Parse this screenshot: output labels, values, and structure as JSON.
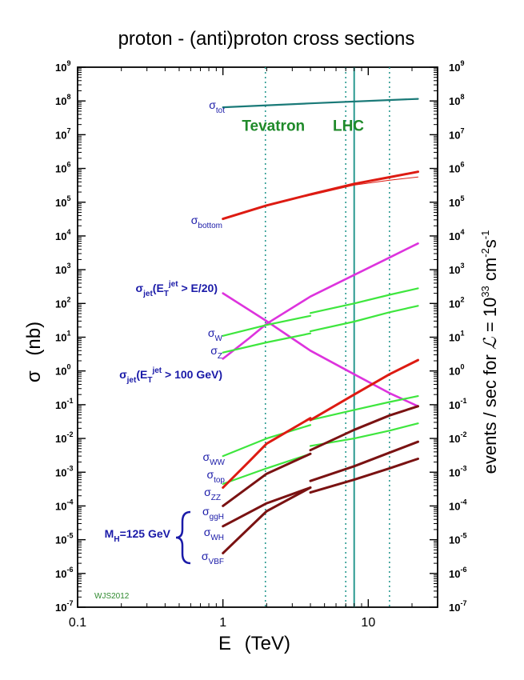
{
  "chart_data": {
    "type": "line",
    "title": "proton - (anti)proton cross sections",
    "xlabel_main": "E",
    "xlabel_unit": "(TeV)",
    "ylabel_left_main": "σ",
    "ylabel_left_unit": "(nb)",
    "ylabel_right": {
      "part1": "events / sec for ",
      "script_L": "ℒ",
      "part2": " = 10",
      "exp1": "33",
      "part3": " cm",
      "exp2": "-2",
      "part4": "s",
      "exp3": "-1"
    },
    "x_scale": "log",
    "y_scale": "log",
    "xlim": [
      0.1,
      30
    ],
    "ylim": [
      1e-07,
      1000000000.0
    ],
    "x_ticks": [
      "0.1",
      "1",
      "10"
    ],
    "y_ticks": [
      {
        "base": "10",
        "exp": "9"
      },
      {
        "base": "10",
        "exp": "8"
      },
      {
        "base": "10",
        "exp": "7"
      },
      {
        "base": "10",
        "exp": "6"
      },
      {
        "base": "10",
        "exp": "5"
      },
      {
        "base": "10",
        "exp": "4"
      },
      {
        "base": "10",
        "exp": "3"
      },
      {
        "base": "10",
        "exp": "2"
      },
      {
        "base": "10",
        "exp": "1"
      },
      {
        "base": "10",
        "exp": "0"
      },
      {
        "base": "10",
        "exp": "-1"
      },
      {
        "base": "10",
        "exp": "-2"
      },
      {
        "base": "10",
        "exp": "-3"
      },
      {
        "base": "10",
        "exp": "-4"
      },
      {
        "base": "10",
        "exp": "-5"
      },
      {
        "base": "10",
        "exp": "-6"
      },
      {
        "base": "10",
        "exp": "-7"
      }
    ],
    "colliders": {
      "tevatron": {
        "label": "Tevatron",
        "energies": [
          1.96
        ]
      },
      "lhc": {
        "label": "LHC",
        "energies": [
          7,
          8,
          14
        ]
      }
    },
    "credit": "WJS2012",
    "colors": {
      "tot": "#1a7a78",
      "bottom": "#dd1b12",
      "jet": "#dd33dd",
      "ew": "#3ee63e",
      "top": "#dd1b12",
      "higgs": "#7a1212",
      "vline": "#2a9a90",
      "label": "#1a1aa8",
      "collider": "#1f8a2a"
    },
    "series": [
      {
        "key": "tot",
        "color_key": "tot",
        "width": 2.2,
        "segments": [
          [
            [
              1,
              65000000.0
            ],
            [
              4,
              85000000.0
            ],
            [
              22,
              115000000.0
            ]
          ]
        ]
      },
      {
        "key": "bottom",
        "color_key": "bottom",
        "width": 3,
        "segments": [
          [
            [
              1,
              32000.0
            ],
            [
              2,
              80000.0
            ],
            [
              4,
              170000.0
            ],
            [
              8,
              350000.0
            ],
            [
              14,
              550000.0
            ],
            [
              22,
              800000.0
            ]
          ]
        ]
      },
      {
        "key": "bottom_lhc_thin",
        "color_key": "bottom",
        "width": 1,
        "segments": [
          [
            [
              4,
              160000.0
            ],
            [
              8,
              320000.0
            ],
            [
              14,
              450000.0
            ],
            [
              22,
              560000.0
            ]
          ]
        ]
      },
      {
        "key": "jet_e20",
        "color_key": "jet",
        "width": 2.6,
        "segments": [
          [
            [
              1,
              2.3
            ],
            [
              1.5,
              9
            ],
            [
              2,
              25
            ],
            [
              4,
              160.0
            ],
            [
              8,
              700.0
            ],
            [
              14,
              2300.0
            ],
            [
              22,
              6000.0
            ]
          ]
        ]
      },
      {
        "key": "jet_100",
        "color_key": "jet",
        "width": 2.6,
        "segments": [
          [
            [
              1,
              200.0
            ],
            [
              2,
              30
            ],
            [
              4,
              4
            ],
            [
              8,
              0.8
            ],
            [
              14,
              0.22
            ],
            [
              22,
              0.09
            ]
          ]
        ]
      },
      {
        "key": "W",
        "color_key": "ew",
        "width": 2.2,
        "segments": [
          [
            [
              1,
              11
            ],
            [
              2,
              23
            ],
            [
              4,
              43
            ]
          ],
          [
            [
              4,
              52
            ],
            [
              8,
              100.0
            ],
            [
              14,
              180.0
            ],
            [
              22,
              280.0
            ]
          ]
        ]
      },
      {
        "key": "Z",
        "color_key": "ew",
        "width": 2.2,
        "segments": [
          [
            [
              1,
              3.5
            ],
            [
              2,
              7
            ],
            [
              4,
              13
            ]
          ],
          [
            [
              4,
              15
            ],
            [
              8,
              29
            ],
            [
              14,
              55
            ],
            [
              22,
              85
            ]
          ]
        ]
      },
      {
        "key": "WW",
        "color_key": "ew",
        "width": 2.2,
        "segments": [
          [
            [
              1,
              0.003
            ],
            [
              2,
              0.01
            ],
            [
              4,
              0.025
            ]
          ],
          [
            [
              4,
              0.035
            ],
            [
              8,
              0.07
            ],
            [
              14,
              0.12
            ],
            [
              22,
              0.18
            ]
          ]
        ]
      },
      {
        "key": "ZZ",
        "color_key": "ew",
        "width": 2.2,
        "segments": [
          [
            [
              1,
              0.00045
            ],
            [
              2,
              0.0013
            ],
            [
              4,
              0.0035
            ]
          ],
          [
            [
              4,
              0.006
            ],
            [
              8,
              0.01
            ],
            [
              14,
              0.017
            ],
            [
              22,
              0.028
            ]
          ]
        ]
      },
      {
        "key": "top",
        "color_key": "top",
        "width": 3,
        "segments": [
          [
            [
              1,
              0.00035
            ],
            [
              1.5,
              0.002
            ],
            [
              2,
              0.007
            ],
            [
              4,
              0.04
            ]
          ],
          [
            [
              4,
              0.035
            ],
            [
              8,
              0.2
            ],
            [
              14,
              0.8
            ],
            [
              22,
              2.1
            ]
          ]
        ]
      },
      {
        "key": "ggH",
        "color_key": "higgs",
        "width": 3,
        "segments": [
          [
            [
              1,
              0.0001
            ],
            [
              2,
              0.0009
            ],
            [
              4,
              0.0035
            ]
          ],
          [
            [
              4,
              0.0045
            ],
            [
              8,
              0.018
            ],
            [
              14,
              0.048
            ],
            [
              22,
              0.09
            ]
          ]
        ]
      },
      {
        "key": "WH",
        "color_key": "higgs",
        "width": 3,
        "segments": [
          [
            [
              1,
              2.5e-05
            ],
            [
              2,
              0.00012
            ],
            [
              4,
              0.00035
            ]
          ],
          [
            [
              4,
              0.00055
            ],
            [
              8,
              0.0015
            ],
            [
              14,
              0.0038
            ],
            [
              22,
              0.008
            ]
          ]
        ]
      },
      {
        "key": "VBF",
        "color_key": "higgs",
        "width": 3,
        "segments": [
          [
            [
              1,
              4e-06
            ],
            [
              2,
              7e-05
            ],
            [
              4,
              0.00035
            ]
          ],
          [
            [
              4,
              0.00025
            ],
            [
              8,
              0.0006
            ],
            [
              14,
              0.0013
            ],
            [
              22,
              0.0025
            ]
          ]
        ]
      }
    ],
    "labels": {
      "tot": {
        "main": "σ",
        "sub": "tot"
      },
      "bottom": {
        "main": "σ",
        "sub": "bottom"
      },
      "jet_e20": {
        "main": "σ",
        "sub": "jet",
        "mid": "(E",
        "sub2": "T",
        "sup": "jet",
        "rest": " > E/20)"
      },
      "jet_100": {
        "main": "σ",
        "sub": "jet",
        "mid": "(E",
        "sub2": "T",
        "sup": "jet",
        "rest": " > 100 GeV)"
      },
      "W": {
        "main": "σ",
        "sub": "W"
      },
      "Z": {
        "main": "σ",
        "sub": "Z"
      },
      "WW": {
        "main": "σ",
        "sub": "WW"
      },
      "top": {
        "main": "σ",
        "sub": "top"
      },
      "ZZ": {
        "main": "σ",
        "sub": "ZZ"
      },
      "ggH": {
        "main": "σ",
        "sub": "ggH"
      },
      "WH": {
        "main": "σ",
        "sub": "WH"
      },
      "VBF": {
        "main": "σ",
        "sub": "VBF"
      },
      "mh": {
        "main": "M",
        "sub": "H",
        "rest": "=125 GeV"
      }
    }
  }
}
